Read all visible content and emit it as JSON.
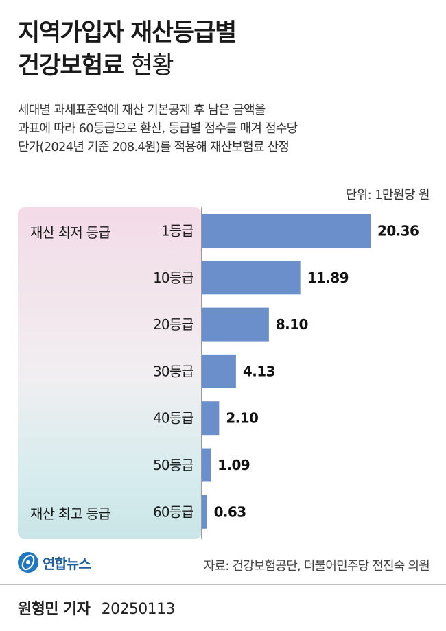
{
  "title_line1": "지역가입자 재산등급별",
  "title_line2_bold": "건강보험료",
  "title_line2_light": "현황",
  "description": [
    "세대별 과세표준액에 재산 기본공제 후 남은 금액을",
    "과표에 따라 60등급으로 환산, 등급별 점수를 매겨 점수당",
    "단가(2024년 기준 208.4원)를 적용해 재산보험료 산정"
  ],
  "unit": "단위: 1만원당 원",
  "tier_labels": {
    "lowest": "재산 최저 등급",
    "highest": "재산 최고 등급"
  },
  "chart_data": {
    "type": "bar",
    "orientation": "horizontal",
    "categories": [
      "1등급",
      "10등급",
      "20등급",
      "30등급",
      "40등급",
      "50등급",
      "60등급"
    ],
    "values": [
      20.36,
      11.89,
      8.1,
      4.13,
      2.1,
      1.09,
      0.63
    ],
    "value_labels": [
      "20.36",
      "11.89",
      "8.10",
      "4.13",
      "2.10",
      "1.09",
      "0.63"
    ],
    "unit": "1만원당 원",
    "bar_color": "#6b8fcb",
    "grid": false
  },
  "logo_text": "연합뉴스",
  "logo_icon": "yonhap-logo-icon",
  "source": "자료: 건강보험공단, 더불어민주당 전진숙 의원",
  "reporter": "원형민 기자",
  "date": "20250113"
}
